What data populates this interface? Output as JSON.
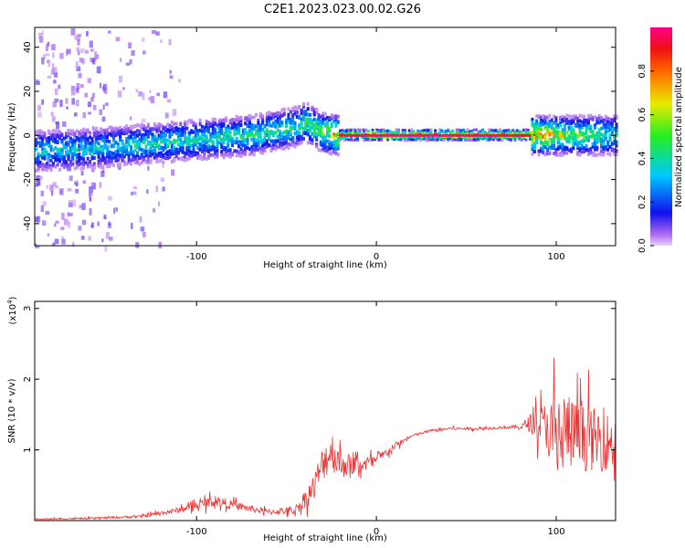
{
  "figure_title": "C2E1.2023.023.00.02.G26",
  "chart_data": [
    {
      "type": "heatmap",
      "title": "",
      "xlabel": "Height of straight line (km)",
      "ylabel": "Frequency (Hz)",
      "xlim": [
        -190,
        133
      ],
      "ylim": [
        -50,
        49
      ],
      "xticks": [
        -100,
        0,
        100
      ],
      "yticks": [
        -40,
        -20,
        0,
        20,
        40
      ],
      "grid": false,
      "colorbar": {
        "label": "Normalized spectral amplitude",
        "range": [
          0,
          1
        ],
        "ticks": [
          0.0,
          0.2,
          0.4,
          0.6,
          0.8
        ],
        "colormap": "rainbow (violet-blue-cyan-green-yellow-red-pink)"
      },
      "ridge": {
        "x": [
          -190,
          -160,
          -130,
          -100,
          -70,
          -45,
          -40,
          -30,
          -20,
          0,
          40,
          80,
          110,
          133
        ],
        "y": [
          -7,
          -6,
          -4,
          -2,
          0,
          4,
          6,
          1,
          0,
          0,
          0,
          0,
          0,
          0
        ],
        "peak_amplitude": [
          0.4,
          0.4,
          0.45,
          0.45,
          0.5,
          0.5,
          0.55,
          0.6,
          0.95,
          1.0,
          1.0,
          0.95,
          0.6,
          0.5
        ]
      },
      "noise_region_x": [
        -190,
        -150
      ]
    },
    {
      "type": "line",
      "title": "",
      "xlabel": "Height of straight line (km)",
      "ylabel": "SNR (10 * v/v)",
      "y_multiplier_label": "(x10",
      "y_multiplier_exp": "4",
      "y_multiplier_close": ")",
      "xlim": [
        -190,
        133
      ],
      "ylim": [
        0,
        3.1
      ],
      "xticks": [
        -100,
        0,
        100
      ],
      "yticks": [
        1,
        2,
        3
      ],
      "grid": false,
      "series": [
        {
          "color": "#ee3333",
          "x": [
            -190,
            -160,
            -130,
            -110,
            -90,
            -80,
            -60,
            -45,
            -35,
            -30,
            -25,
            -20,
            -10,
            0,
            10,
            20,
            30,
            40,
            50,
            60,
            70,
            80,
            85,
            95,
            100,
            105,
            110,
            120,
            133
          ],
          "y": [
            0.02,
            0.03,
            0.06,
            0.15,
            0.28,
            0.22,
            0.12,
            0.15,
            0.45,
            0.8,
            1.0,
            0.8,
            0.78,
            0.85,
            1.05,
            1.2,
            1.27,
            1.3,
            1.3,
            1.3,
            1.32,
            1.32,
            1.38,
            1.35,
            1.1,
            1.3,
            1.2,
            1.15,
            1.1
          ],
          "noise": [
            0.01,
            0.01,
            0.02,
            0.04,
            0.08,
            0.06,
            0.04,
            0.06,
            0.2,
            0.25,
            0.3,
            0.2,
            0.12,
            0.08,
            0.05,
            0.02,
            0.02,
            0.02,
            0.02,
            0.02,
            0.02,
            0.03,
            0.12,
            0.35,
            0.7,
            0.6,
            0.5,
            0.45,
            0.4
          ]
        }
      ]
    }
  ]
}
